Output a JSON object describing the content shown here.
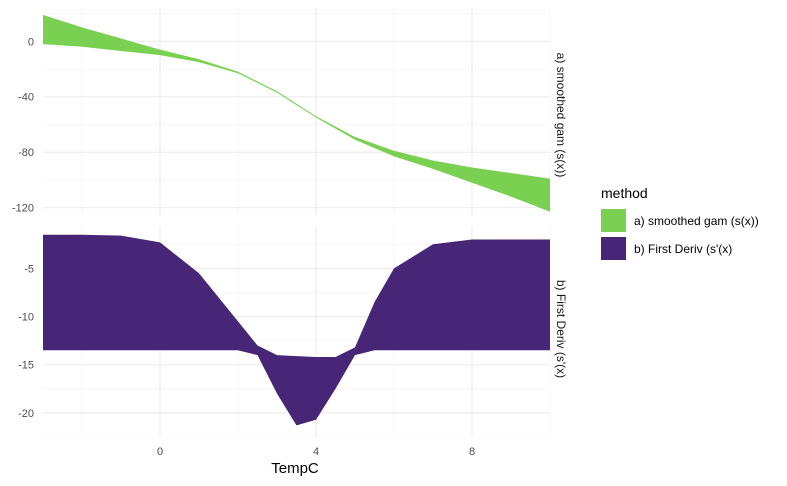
{
  "chart_data": {
    "type": "area",
    "xlabel": "TempC",
    "x_ticks": [
      0,
      4,
      8
    ],
    "xlim": [
      -3.0,
      10.0
    ],
    "grid": true,
    "legend": {
      "title": "method",
      "placement": "right",
      "entries": [
        "a) smoothed gam (s(x))",
        "b) First Deriv (s'(x)"
      ]
    },
    "colors": {
      "a": "#7ad151",
      "b": "#482677"
    },
    "panels": [
      {
        "strip_label": "a) smoothed gam (s(x))",
        "ylim": [
          -126,
          24
        ],
        "y_ticks": [
          0,
          -40,
          -80,
          -120
        ],
        "series": [
          {
            "name": "a) smoothed gam (s(x))",
            "x": [
              -3.0,
              -2.0,
              -1.0,
              0.0,
              1.0,
              2.0,
              3.0,
              4.0,
              5.0,
              6.0,
              7.0,
              8.0,
              9.0,
              10.0
            ],
            "lower": [
              -2,
              -4,
              -7,
              -10,
              -15,
              -23,
              -37,
              -55,
              -71,
              -83,
              -92,
              -102,
              -112,
              -123
            ],
            "upper": [
              19,
              10,
              2,
              -6,
              -13,
              -22,
              -36,
              -54,
              -69,
              -79,
              -86,
              -91,
              -95,
              -99
            ]
          }
        ]
      },
      {
        "strip_label": "b) First Deriv (s'(x)",
        "ylim": [
          -22.5,
          -0.6
        ],
        "y_ticks": [
          -5,
          -10,
          -15,
          -20
        ],
        "series": [
          {
            "name": "b) First Deriv (s'(x)",
            "x": [
              -3.0,
              -2.0,
              -1.0,
              0.0,
              1.0,
              2.0,
              2.5,
              3.0,
              3.5,
              4.0,
              4.5,
              5.0,
              5.5,
              6.0,
              7.0,
              8.0,
              9.0,
              10.0
            ],
            "lower": [
              -13.5,
              -13.5,
              -13.5,
              -13.5,
              -13.5,
              -13.5,
              -14.0,
              -18.0,
              -21.3,
              -20.7,
              -17.5,
              -14.0,
              -13.5,
              -13.5,
              -13.5,
              -13.5,
              -13.5,
              -13.5
            ],
            "upper": [
              -1.5,
              -1.5,
              -1.6,
              -2.3,
              -5.5,
              -10.5,
              -13.0,
              -14.0,
              -14.1,
              -14.2,
              -14.2,
              -13.2,
              -8.5,
              -5.0,
              -2.5,
              -2.0,
              -2.0,
              -2.0
            ]
          }
        ]
      }
    ]
  }
}
